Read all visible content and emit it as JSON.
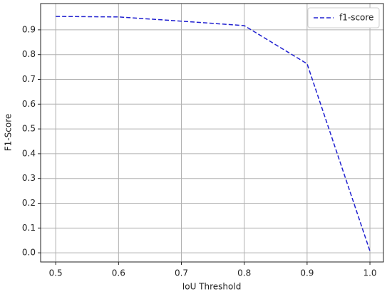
{
  "chart_data": {
    "type": "line",
    "x_label": "IoU Threshold",
    "y_label": "F1-Score",
    "x": [
      0.5,
      0.6,
      0.7,
      0.8,
      0.9,
      1.0
    ],
    "series": [
      {
        "name": "f1-score",
        "color": "#2020d0",
        "values": [
          0.954,
          0.952,
          0.935,
          0.917,
          0.763,
          0.007
        ]
      }
    ],
    "xlim": [
      0.476,
      1.0215
    ],
    "ylim": [
      -0.037,
      1.006
    ],
    "xticks": [
      0.5,
      0.6,
      0.7,
      0.8,
      0.9,
      {
        "value": 1,
        "label": "1.0"
      }
    ],
    "yticks": [
      {
        "value": 0,
        "label": "0.0"
      },
      0.1,
      0.2,
      0.3,
      0.4,
      0.5,
      0.6,
      0.7,
      0.8,
      0.9
    ],
    "grid": true,
    "legend": "upper right"
  }
}
